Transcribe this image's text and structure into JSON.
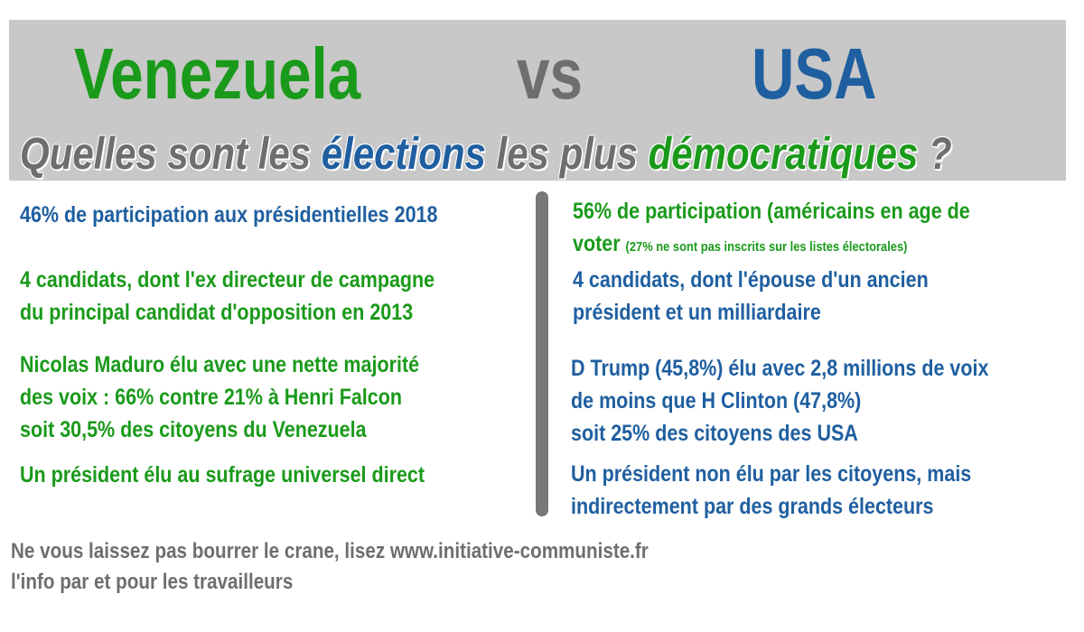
{
  "header": {
    "left": "Venezuela",
    "vs": "vs",
    "right": "USA",
    "question": [
      "Quelles sont les ",
      "élections",
      " les plus ",
      "démocratiques",
      " ?"
    ]
  },
  "left": [
    [
      "46% de participation aux présidentielles 2018"
    ],
    [
      "4 candidats, dont l'ex directeur de campagne",
      "du principal candidat d'opposition en 2013"
    ],
    [
      "Nicolas Maduro élu avec une nette majorité",
      "des voix  : 66% contre 21% à Henri Falcon",
      "soit 30,5% des citoyens du Venezuela"
    ],
    [
      "Un président élu au sufrage universel direct"
    ]
  ],
  "right": [
    {
      "lines": [
        "56% de participation (américains en age de",
        "voter"
      ],
      "note": "(27% ne sont pas inscrits sur les listes électorales)"
    },
    {
      "lines": [
        "4 candidats, dont l'épouse d'un ancien",
        "président et un milliardaire"
      ]
    },
    {
      "lines": [
        "D Trump (45,8%) élu avec 2,8 millions de voix",
        "de moins que H Clinton (47,8%)",
        "soit 25% des citoyens des USA"
      ]
    },
    {
      "lines": [
        "Un président non élu par les citoyens, mais",
        "indirectement par des grands électeurs"
      ]
    }
  ],
  "footer": [
    "Ne vous laissez pas bourrer le crane, lisez www.initiative-communiste.fr",
    "l'info par et pour les travailleurs"
  ]
}
